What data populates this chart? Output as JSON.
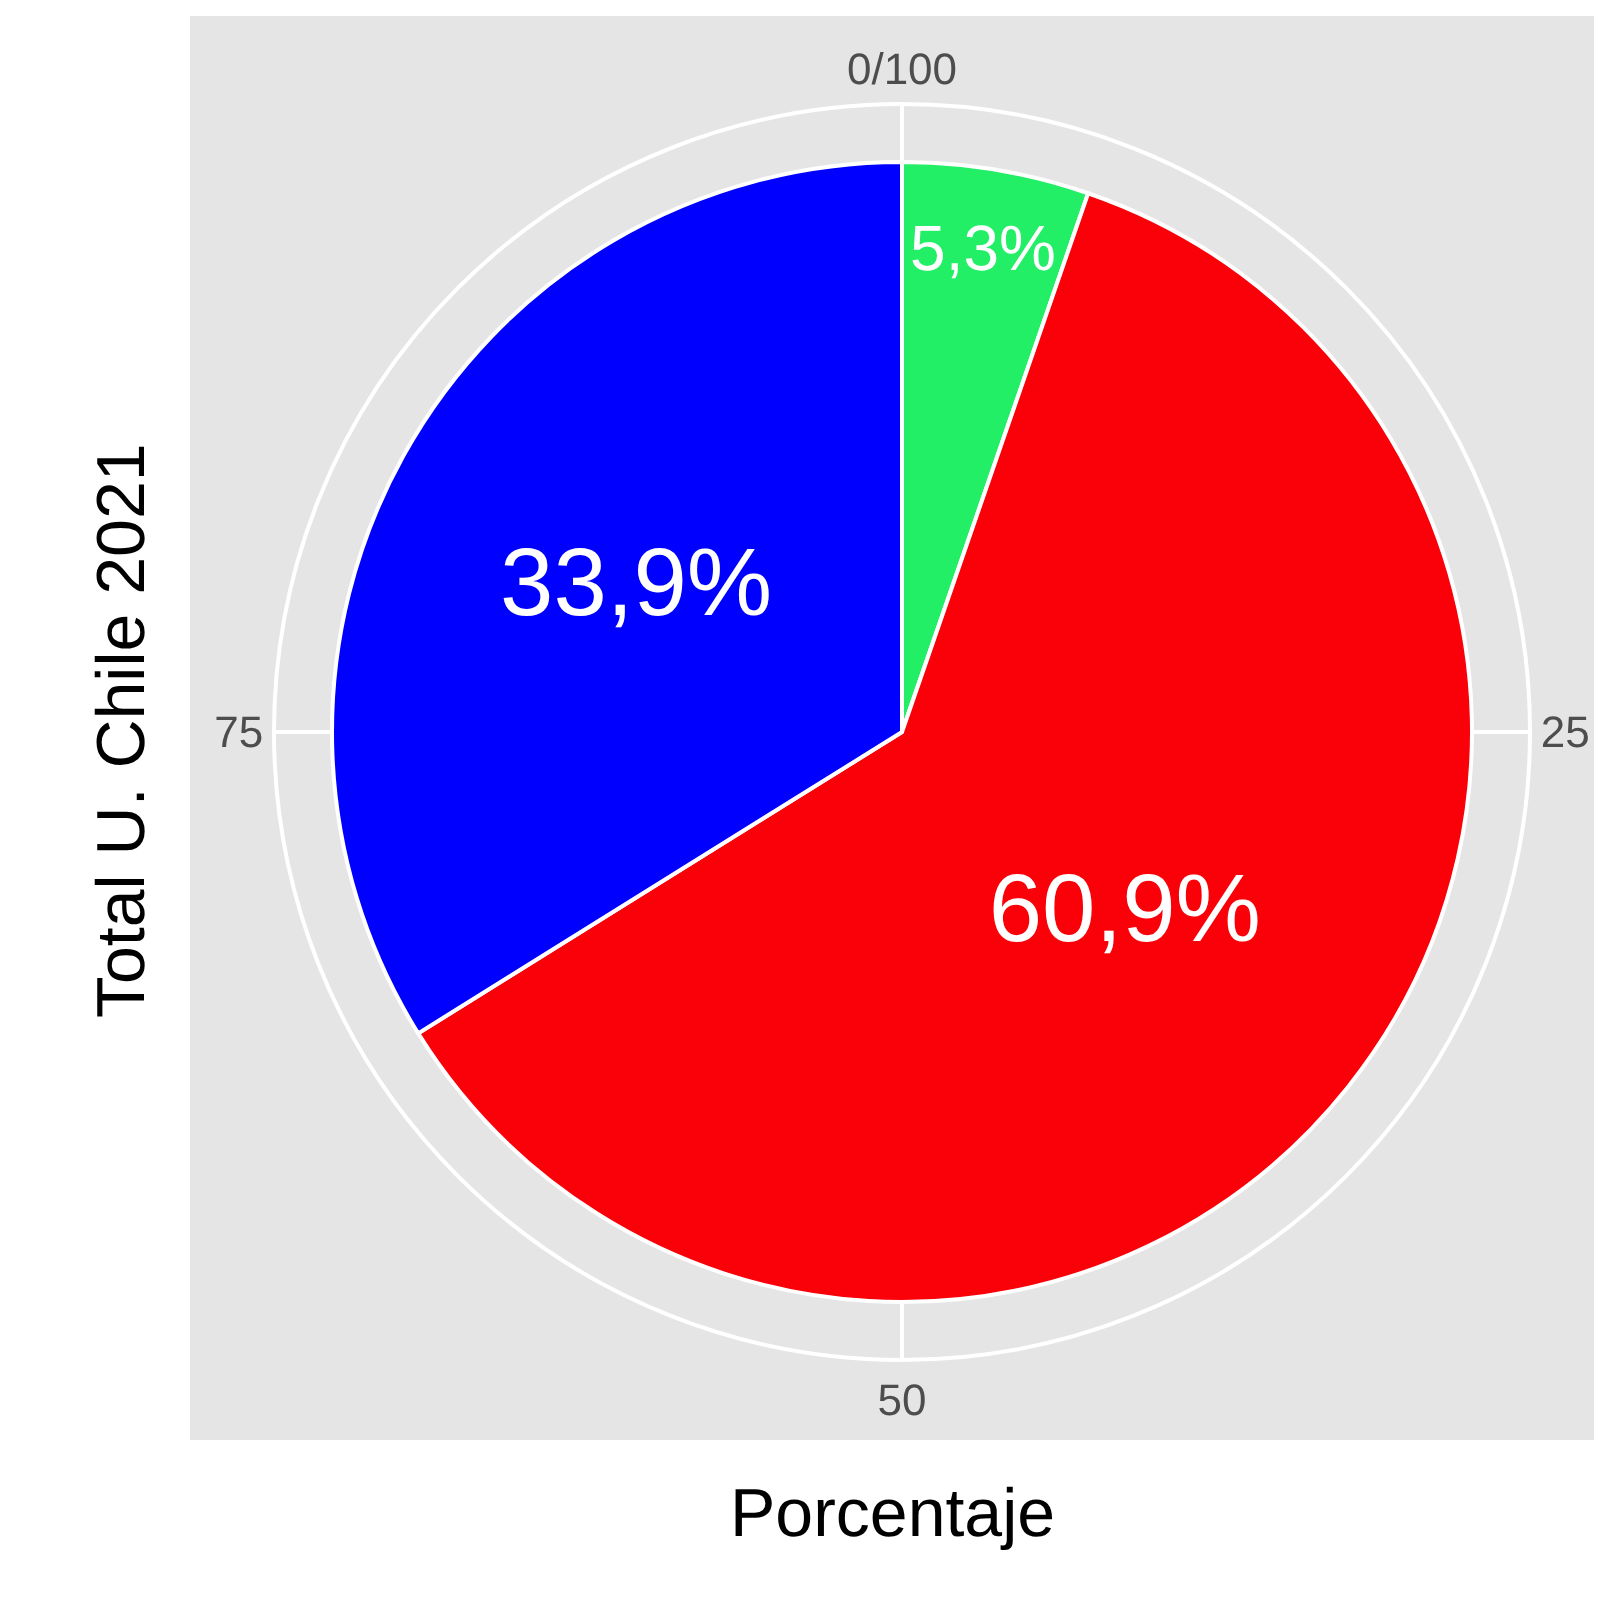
{
  "chart_data": {
    "type": "pie",
    "categories": [
      null,
      null,
      null
    ],
    "values": [
      5.3,
      60.9,
      33.9
    ],
    "colors": [
      "#22ee66",
      "#fa0008",
      "#0000fe"
    ],
    "value_labels": [
      "5,3%",
      "60,9%",
      "33,9%"
    ],
    "xlabel": "Porcentaje",
    "ylabel": "Total U. Chile 2021",
    "annotations": [
      "0/100",
      "25",
      "50",
      "75"
    ],
    "legend": false
  }
}
